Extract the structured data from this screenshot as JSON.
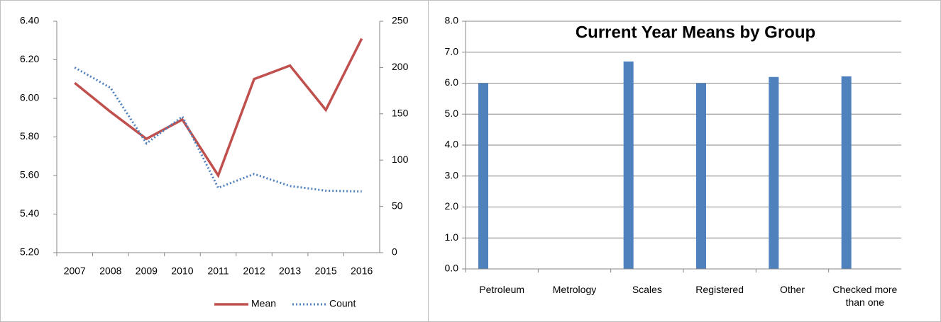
{
  "chart_data": [
    {
      "type": "line",
      "categories": [
        "2007",
        "2008",
        "2009",
        "2010",
        "2011",
        "2012",
        "2013",
        "2015",
        "2016"
      ],
      "series": [
        {
          "name": "Mean",
          "color": "#c0504d",
          "line_style": "solid",
          "values": [
            6.08,
            5.93,
            5.79,
            5.89,
            5.6,
            6.1,
            6.17,
            5.94,
            6.31
          ]
        },
        {
          "name": "Count",
          "color": "#4f81bd",
          "line_style": "dotted",
          "axis": "y2",
          "values": [
            200,
            178,
            118,
            147,
            70,
            85,
            72,
            67,
            66
          ]
        }
      ],
      "ylim": [
        5.2,
        6.4
      ],
      "yticks": [
        {
          "value": 5.2,
          "label": "5.20"
        },
        {
          "value": 5.4,
          "label": "5.40"
        },
        {
          "value": 5.6,
          "label": "5.60"
        },
        {
          "value": 5.8,
          "label": "5.80"
        },
        {
          "value": 6.0,
          "label": "6.00"
        },
        {
          "value": 6.2,
          "label": "6.20"
        },
        {
          "value": 6.4,
          "label": "6.40"
        }
      ],
      "y2lim": [
        0,
        250
      ],
      "y2ticks": [
        0,
        50,
        100,
        150,
        200,
        250
      ],
      "grid": false,
      "legend": "bottom"
    },
    {
      "type": "bar",
      "title": "Current Year Means by Group",
      "categories": [
        "Petroleum",
        "Metrology",
        "Scales",
        "Registered",
        "Other",
        "Checked more than one"
      ],
      "values": [
        6.0,
        null,
        6.7,
        6.0,
        6.2,
        6.22
      ],
      "color": "#4f81bd",
      "ylim": [
        0,
        8
      ],
      "yticks": [
        {
          "value": 0,
          "label": "0.0"
        },
        {
          "value": 1,
          "label": "1.0"
        },
        {
          "value": 2,
          "label": "2.0"
        },
        {
          "value": 3,
          "label": "3.0"
        },
        {
          "value": 4,
          "label": "4.0"
        },
        {
          "value": 5,
          "label": "5.0"
        },
        {
          "value": 6,
          "label": "6.0"
        },
        {
          "value": 7,
          "label": "7.0"
        },
        {
          "value": 8,
          "label": "8.0"
        }
      ],
      "grid": true
    }
  ]
}
